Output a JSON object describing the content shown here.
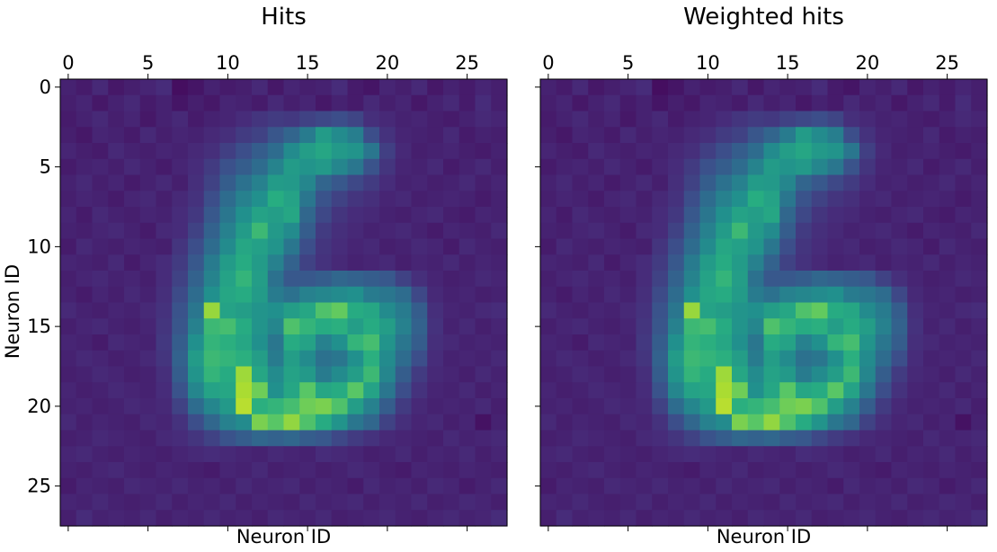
{
  "chart_data": [
    {
      "type": "heatmap",
      "title": "Hits",
      "xlabel": "Neuron ID",
      "ylabel": "Neuron ID",
      "x_ticks": [
        0,
        5,
        10,
        15,
        20,
        25
      ],
      "y_ticks": [
        0,
        5,
        10,
        15,
        20,
        25
      ],
      "xlim": [
        -0.5,
        27.5
      ],
      "ylim": [
        27.5,
        -0.5
      ],
      "grid": false,
      "colormap": "viridis",
      "value_range": [
        0,
        1
      ],
      "approximate_intensity": true,
      "grid_size": [
        28,
        28
      ],
      "x_axis_position": "top"
    },
    {
      "type": "heatmap",
      "title": "Weighted hits",
      "xlabel": "Neuron ID",
      "ylabel": "",
      "x_ticks": [
        0,
        5,
        10,
        15,
        20,
        25
      ],
      "y_ticks": [
        0,
        5,
        10,
        15,
        20,
        25
      ],
      "y_tick_labels_visible": false,
      "xlim": [
        -0.5,
        27.5
      ],
      "ylim": [
        27.5,
        -0.5
      ],
      "grid": false,
      "colormap": "viridis",
      "value_range": [
        0,
        1
      ],
      "approximate_intensity": true,
      "grid_size": [
        28,
        28
      ],
      "x_axis_position": "top"
    }
  ],
  "shared_values": [
    [
      0.1,
      0.08,
      0.12,
      0.07,
      0.09,
      0.11,
      0.13,
      0.04,
      0.06,
      0.1,
      0.08,
      0.09,
      0.12,
      0.07,
      0.11,
      0.09,
      0.1,
      0.13,
      0.08,
      0.06,
      0.11,
      0.09,
      0.12,
      0.07,
      0.1,
      0.08,
      0.11,
      0.09
    ],
    [
      0.09,
      0.11,
      0.07,
      0.1,
      0.12,
      0.08,
      0.1,
      0.06,
      0.09,
      0.07,
      0.11,
      0.1,
      0.08,
      0.12,
      0.09,
      0.11,
      0.07,
      0.1,
      0.08,
      0.12,
      0.09,
      0.11,
      0.07,
      0.1,
      0.12,
      0.08,
      0.13,
      0.09
    ],
    [
      0.08,
      0.1,
      0.12,
      0.09,
      0.11,
      0.07,
      0.1,
      0.12,
      0.08,
      0.1,
      0.11,
      0.13,
      0.16,
      0.18,
      0.17,
      0.2,
      0.22,
      0.24,
      0.21,
      0.14,
      0.12,
      0.1,
      0.11,
      0.09,
      0.08,
      0.1,
      0.12,
      0.11
    ],
    [
      0.09,
      0.07,
      0.11,
      0.1,
      0.08,
      0.12,
      0.09,
      0.11,
      0.1,
      0.12,
      0.14,
      0.18,
      0.2,
      0.27,
      0.33,
      0.42,
      0.55,
      0.48,
      0.43,
      0.24,
      0.15,
      0.11,
      0.1,
      0.09,
      0.12,
      0.08,
      0.1,
      0.09
    ],
    [
      0.11,
      0.09,
      0.08,
      0.12,
      0.1,
      0.09,
      0.11,
      0.1,
      0.12,
      0.14,
      0.19,
      0.24,
      0.3,
      0.36,
      0.48,
      0.56,
      0.6,
      0.54,
      0.52,
      0.4,
      0.19,
      0.12,
      0.09,
      0.1,
      0.11,
      0.09,
      0.08,
      0.1
    ],
    [
      0.08,
      0.1,
      0.11,
      0.09,
      0.12,
      0.1,
      0.08,
      0.11,
      0.13,
      0.18,
      0.25,
      0.3,
      0.36,
      0.45,
      0.55,
      0.52,
      0.54,
      0.46,
      0.4,
      0.26,
      0.16,
      0.11,
      0.1,
      0.12,
      0.08,
      0.1,
      0.12,
      0.09
    ],
    [
      0.1,
      0.12,
      0.09,
      0.11,
      0.08,
      0.1,
      0.12,
      0.09,
      0.14,
      0.2,
      0.3,
      0.38,
      0.44,
      0.55,
      0.54,
      0.46,
      0.33,
      0.28,
      0.22,
      0.18,
      0.13,
      0.1,
      0.11,
      0.09,
      0.1,
      0.12,
      0.09,
      0.11
    ],
    [
      0.09,
      0.11,
      0.1,
      0.08,
      0.11,
      0.12,
      0.09,
      0.12,
      0.15,
      0.24,
      0.36,
      0.44,
      0.5,
      0.63,
      0.58,
      0.4,
      0.26,
      0.2,
      0.16,
      0.14,
      0.11,
      0.12,
      0.09,
      0.1,
      0.11,
      0.1,
      0.08,
      0.1
    ],
    [
      0.11,
      0.08,
      0.12,
      0.1,
      0.09,
      0.11,
      0.1,
      0.13,
      0.17,
      0.28,
      0.4,
      0.5,
      0.58,
      0.56,
      0.6,
      0.34,
      0.22,
      0.16,
      0.13,
      0.12,
      0.1,
      0.09,
      0.11,
      0.12,
      0.09,
      0.08,
      0.11,
      0.1
    ],
    [
      0.1,
      0.09,
      0.11,
      0.12,
      0.1,
      0.08,
      0.12,
      0.13,
      0.2,
      0.32,
      0.44,
      0.55,
      0.68,
      0.54,
      0.48,
      0.3,
      0.18,
      0.14,
      0.12,
      0.1,
      0.11,
      0.12,
      0.1,
      0.08,
      0.11,
      0.1,
      0.09,
      0.12
    ],
    [
      0.08,
      0.12,
      0.1,
      0.09,
      0.11,
      0.1,
      0.09,
      0.16,
      0.24,
      0.36,
      0.48,
      0.6,
      0.57,
      0.52,
      0.4,
      0.24,
      0.16,
      0.13,
      0.11,
      0.12,
      0.09,
      0.1,
      0.12,
      0.11,
      0.08,
      0.12,
      0.1,
      0.09
    ],
    [
      0.11,
      0.1,
      0.09,
      0.12,
      0.08,
      0.11,
      0.13,
      0.18,
      0.28,
      0.42,
      0.55,
      0.62,
      0.55,
      0.44,
      0.32,
      0.2,
      0.15,
      0.12,
      0.1,
      0.11,
      0.12,
      0.09,
      0.11,
      0.1,
      0.12,
      0.09,
      0.11,
      0.1
    ],
    [
      0.09,
      0.11,
      0.12,
      0.1,
      0.11,
      0.09,
      0.13,
      0.2,
      0.32,
      0.45,
      0.58,
      0.66,
      0.56,
      0.38,
      0.28,
      0.28,
      0.3,
      0.34,
      0.32,
      0.3,
      0.28,
      0.2,
      0.14,
      0.11,
      0.09,
      0.1,
      0.12,
      0.11
    ],
    [
      0.1,
      0.08,
      0.11,
      0.09,
      0.12,
      0.1,
      0.14,
      0.23,
      0.36,
      0.5,
      0.6,
      0.62,
      0.55,
      0.42,
      0.38,
      0.44,
      0.46,
      0.48,
      0.5,
      0.42,
      0.4,
      0.36,
      0.22,
      0.12,
      0.1,
      0.11,
      0.09,
      0.1
    ],
    [
      0.12,
      0.1,
      0.09,
      0.11,
      0.1,
      0.12,
      0.15,
      0.26,
      0.4,
      0.85,
      0.58,
      0.56,
      0.52,
      0.5,
      0.56,
      0.6,
      0.72,
      0.76,
      0.62,
      0.6,
      0.48,
      0.42,
      0.3,
      0.14,
      0.11,
      0.1,
      0.12,
      0.13
    ],
    [
      0.09,
      0.11,
      0.12,
      0.1,
      0.09,
      0.11,
      0.16,
      0.27,
      0.44,
      0.68,
      0.7,
      0.62,
      0.52,
      0.46,
      0.72,
      0.66,
      0.62,
      0.64,
      0.56,
      0.62,
      0.56,
      0.44,
      0.32,
      0.15,
      0.1,
      0.12,
      0.09,
      0.11
    ],
    [
      0.11,
      0.1,
      0.08,
      0.12,
      0.11,
      0.1,
      0.17,
      0.3,
      0.5,
      0.66,
      0.64,
      0.6,
      0.5,
      0.4,
      0.62,
      0.58,
      0.44,
      0.5,
      0.66,
      0.7,
      0.52,
      0.4,
      0.3,
      0.14,
      0.12,
      0.1,
      0.11,
      0.1
    ],
    [
      0.1,
      0.12,
      0.11,
      0.09,
      0.1,
      0.12,
      0.16,
      0.32,
      0.55,
      0.68,
      0.66,
      0.64,
      0.56,
      0.42,
      0.56,
      0.48,
      0.38,
      0.4,
      0.5,
      0.64,
      0.48,
      0.36,
      0.24,
      0.13,
      0.1,
      0.11,
      0.1,
      0.12
    ],
    [
      0.09,
      0.1,
      0.12,
      0.11,
      0.09,
      0.1,
      0.14,
      0.3,
      0.52,
      0.66,
      0.62,
      0.86,
      0.6,
      0.48,
      0.58,
      0.54,
      0.42,
      0.48,
      0.56,
      0.68,
      0.46,
      0.3,
      0.18,
      0.12,
      0.11,
      0.09,
      0.12,
      0.1
    ],
    [
      0.11,
      0.09,
      0.1,
      0.12,
      0.11,
      0.1,
      0.13,
      0.26,
      0.46,
      0.58,
      0.6,
      0.88,
      0.78,
      0.5,
      0.6,
      0.74,
      0.6,
      0.62,
      0.74,
      0.58,
      0.4,
      0.24,
      0.15,
      0.11,
      0.1,
      0.12,
      0.09,
      0.11
    ],
    [
      0.1,
      0.11,
      0.09,
      0.1,
      0.12,
      0.11,
      0.12,
      0.2,
      0.36,
      0.46,
      0.54,
      0.9,
      0.64,
      0.66,
      0.7,
      0.78,
      0.8,
      0.72,
      0.56,
      0.44,
      0.3,
      0.18,
      0.12,
      0.1,
      0.11,
      0.1,
      0.12,
      0.09
    ],
    [
      0.12,
      0.09,
      0.11,
      0.1,
      0.09,
      0.12,
      0.11,
      0.15,
      0.24,
      0.34,
      0.44,
      0.48,
      0.8,
      0.74,
      0.84,
      0.72,
      0.62,
      0.52,
      0.4,
      0.34,
      0.2,
      0.14,
      0.11,
      0.12,
      0.09,
      0.11,
      0.05,
      0.1
    ],
    [
      0.09,
      0.1,
      0.12,
      0.11,
      0.1,
      0.09,
      0.12,
      0.13,
      0.16,
      0.2,
      0.26,
      0.3,
      0.34,
      0.32,
      0.34,
      0.3,
      0.28,
      0.22,
      0.18,
      0.15,
      0.12,
      0.11,
      0.1,
      0.09,
      0.12,
      0.1,
      0.11,
      0.12
    ],
    [
      0.11,
      0.12,
      0.1,
      0.09,
      0.11,
      0.1,
      0.09,
      0.11,
      0.12,
      0.13,
      0.12,
      0.11,
      0.1,
      0.12,
      0.11,
      0.1,
      0.13,
      0.12,
      0.11,
      0.09,
      0.1,
      0.12,
      0.09,
      0.11,
      0.1,
      0.12,
      0.09,
      0.11
    ],
    [
      0.1,
      0.09,
      0.11,
      0.12,
      0.1,
      0.09,
      0.11,
      0.1,
      0.09,
      0.08,
      0.11,
      0.1,
      0.12,
      0.09,
      0.1,
      0.11,
      0.09,
      0.1,
      0.12,
      0.11,
      0.09,
      0.08,
      0.11,
      0.1,
      0.09,
      0.11,
      0.1,
      0.09
    ],
    [
      0.08,
      0.11,
      0.1,
      0.09,
      0.12,
      0.11,
      0.1,
      0.12,
      0.1,
      0.11,
      0.09,
      0.12,
      0.1,
      0.11,
      0.12,
      0.09,
      0.11,
      0.1,
      0.08,
      0.12,
      0.1,
      0.11,
      0.09,
      0.12,
      0.11,
      0.08,
      0.1,
      0.12
    ],
    [
      0.11,
      0.1,
      0.12,
      0.1,
      0.09,
      0.1,
      0.12,
      0.09,
      0.11,
      0.1,
      0.12,
      0.09,
      0.11,
      0.1,
      0.09,
      0.12,
      0.1,
      0.11,
      0.12,
      0.09,
      0.11,
      0.1,
      0.12,
      0.09,
      0.1,
      0.12,
      0.11,
      0.09
    ],
    [
      0.09,
      0.13,
      0.1,
      0.11,
      0.1,
      0.12,
      0.09,
      0.11,
      0.1,
      0.12,
      0.1,
      0.11,
      0.09,
      0.12,
      0.11,
      0.1,
      0.12,
      0.09,
      0.1,
      0.11,
      0.12,
      0.1,
      0.09,
      0.11,
      0.12,
      0.1,
      0.11,
      0.13
    ]
  ]
}
